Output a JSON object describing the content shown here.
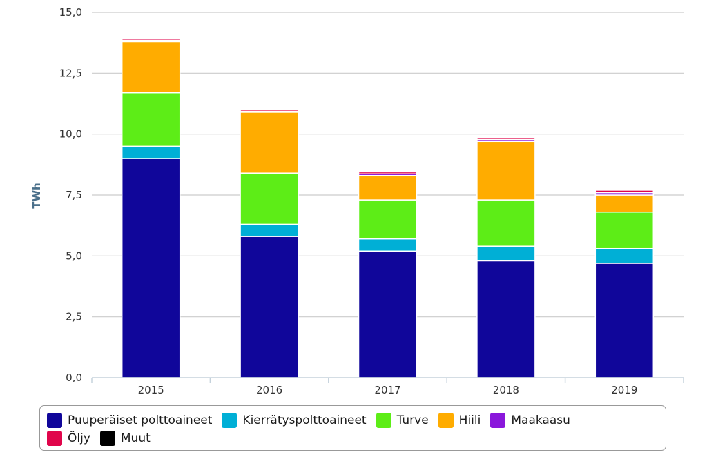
{
  "chart_data": {
    "type": "bar",
    "stacked": true,
    "categories": [
      "2015",
      "2016",
      "2017",
      "2018",
      "2019"
    ],
    "ylabel": "TWh",
    "ylim": [
      0,
      15
    ],
    "yticks": [
      "0,0",
      "2,5",
      "5,0",
      "7,5",
      "10,0",
      "12,5",
      "15,0"
    ],
    "grid": true,
    "legend_position": "bottom",
    "series": [
      {
        "name": "Puuperäiset polttoaineet",
        "color": "#10069a",
        "values": [
          9.0,
          5.8,
          5.2,
          4.8,
          4.7
        ]
      },
      {
        "name": "Kierrätyspolttoaineet",
        "color": "#00afd6",
        "values": [
          0.5,
          0.5,
          0.5,
          0.6,
          0.6
        ]
      },
      {
        "name": "Turve",
        "color": "#5ded17",
        "values": [
          2.2,
          2.1,
          1.6,
          1.9,
          1.5
        ]
      },
      {
        "name": "Hiili",
        "color": "#ffac00",
        "values": [
          2.1,
          2.5,
          1.0,
          2.4,
          0.7
        ]
      },
      {
        "name": "Maakaasu",
        "color": "#8a17db",
        "values": [
          0.06,
          0.04,
          0.07,
          0.08,
          0.1
        ]
      },
      {
        "name": "Öljy",
        "color": "#e0054b",
        "values": [
          0.08,
          0.06,
          0.08,
          0.08,
          0.1
        ]
      },
      {
        "name": "Muut",
        "color": "#000000",
        "values": [
          0.0,
          0.0,
          0.0,
          0.0,
          0.0
        ]
      }
    ]
  }
}
